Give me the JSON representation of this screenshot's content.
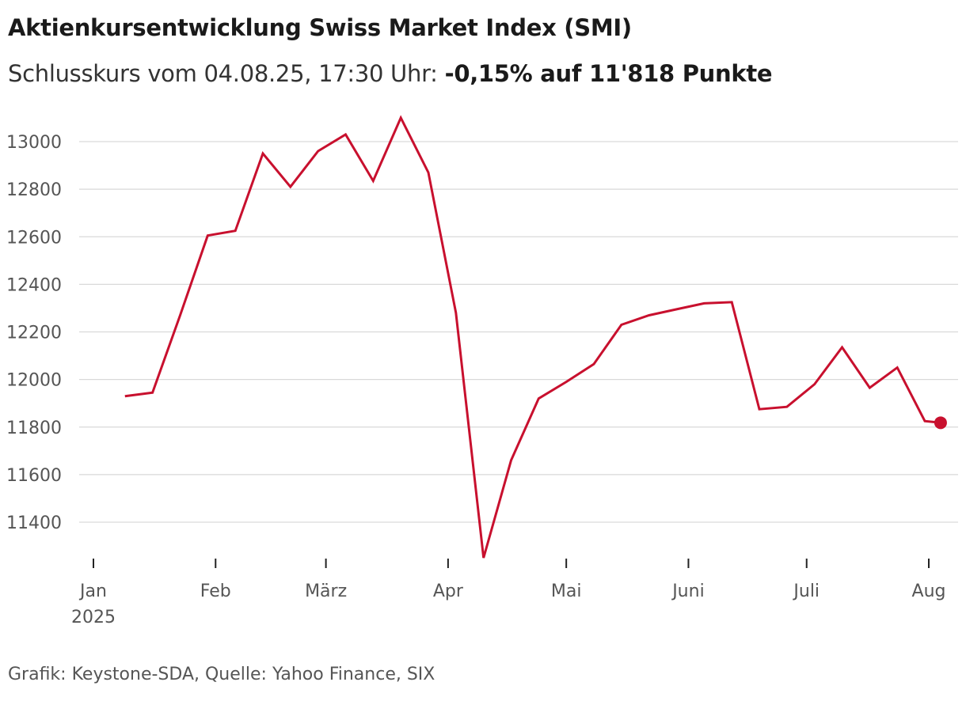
{
  "title": "Aktienkursentwicklung Swiss Market Index (SMI)",
  "subtitle_prefix": "Schlusskurs vom 04.08.25, 17:30 Uhr:",
  "subtitle_highlight": "-0,15% auf 11'818 Punkte",
  "source": "Grafik: Keystone-SDA, Quelle: Yahoo Finance, SIX",
  "colors": {
    "line": "#c8102e",
    "grid": "#d9d9d9",
    "axis": "#222222"
  },
  "chart_data": {
    "type": "line",
    "title": "Aktienkursentwicklung Swiss Market Index (SMI)",
    "xlabel": "",
    "ylabel": "",
    "ylim": [
      11250,
      13100
    ],
    "yticks": [
      11400,
      11600,
      11800,
      12000,
      12200,
      12400,
      12600,
      12800,
      13000
    ],
    "ytick_labels": [
      "11400",
      "11600",
      "11800",
      "12000",
      "12200",
      "12400",
      "12600",
      "12800",
      "13000"
    ],
    "xlim_days": [
      0,
      217
    ],
    "xticks": [
      {
        "day": 0,
        "label": "Jan",
        "sublabel": "2025"
      },
      {
        "day": 31,
        "label": "Feb"
      },
      {
        "day": 59,
        "label": "März"
      },
      {
        "day": 90,
        "label": "Apr"
      },
      {
        "day": 120,
        "label": "Mai"
      },
      {
        "day": 151,
        "label": "Juni"
      },
      {
        "day": 181,
        "label": "Juli"
      },
      {
        "day": 212,
        "label": "Aug"
      }
    ],
    "series": [
      {
        "name": "SMI",
        "x": [
          8,
          15,
          22,
          29,
          36,
          43,
          50,
          57,
          64,
          71,
          78,
          85,
          92,
          99,
          106,
          113,
          120,
          127,
          134,
          141,
          148,
          155,
          162,
          169,
          176,
          183,
          190,
          197,
          204,
          211,
          215
        ],
        "values": [
          11930,
          11945,
          12270,
          12605,
          12625,
          12950,
          12810,
          12960,
          13030,
          12835,
          13100,
          12870,
          12280,
          11250,
          11660,
          11920,
          11990,
          12065,
          12230,
          12270,
          12295,
          12320,
          12325,
          11875,
          11885,
          11980,
          12135,
          11965,
          12050,
          11825,
          11818
        ]
      }
    ],
    "last_point": {
      "x": 215,
      "value": 11818
    }
  }
}
